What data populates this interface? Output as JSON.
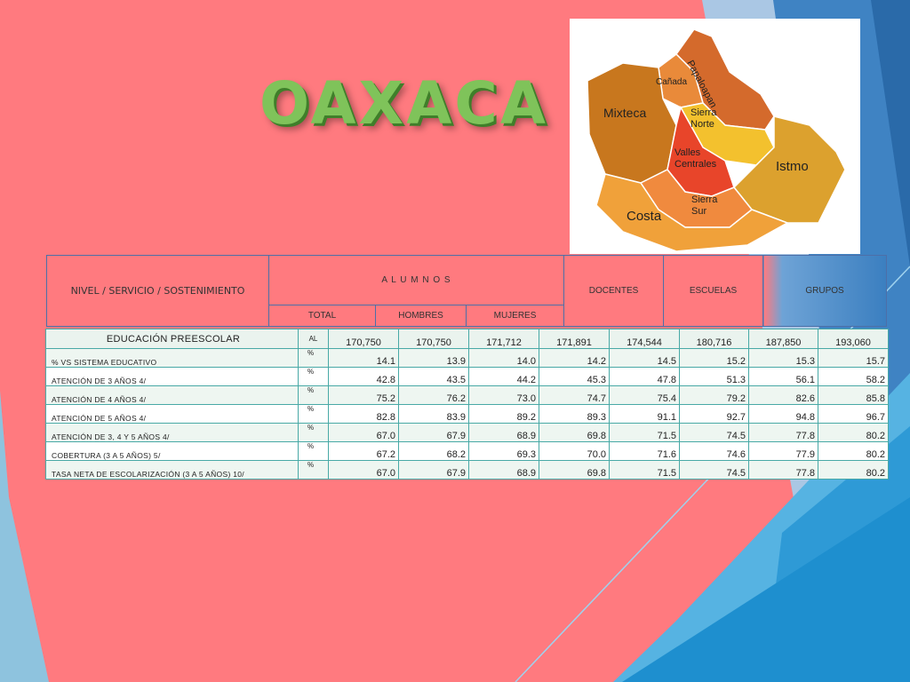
{
  "slide": {
    "title": "OAXACA",
    "colors": {
      "background": "#ff7a7f",
      "title": "#7fc35a",
      "accent_blue": "#3b7fc0"
    }
  },
  "map": {
    "regions": [
      "Papaloapan",
      "Cañada",
      "Mixteca",
      "Sierra Norte",
      "Valles Centrales",
      "Istmo",
      "Sierra Sur",
      "Costa"
    ]
  },
  "header": {
    "nivel": "NIVEL / SERVICIO / SOSTENIMIENTO",
    "alumnos": "A L U M N O S",
    "total": "TOTAL",
    "hombres": "HOMBRES",
    "mujeres": "MUJERES",
    "docentes": "DOCENTES",
    "escuelas": "ESCUELAS",
    "grupos": "GRUPOS"
  },
  "table": {
    "rows": [
      {
        "label": "EDUCACIÓN PREESCOLAR",
        "unit": "AL",
        "values": [
          "170,750",
          "170,750",
          "171,712",
          "171,891",
          "174,544",
          "180,716",
          "187,850",
          "193,060"
        ]
      },
      {
        "label": "% VS SISTEMA EDUCATIVO",
        "unit": "%",
        "values": [
          "14.1",
          "13.9",
          "14.0",
          "14.2",
          "14.5",
          "15.2",
          "15.3",
          "15.7"
        ]
      },
      {
        "label": "ATENCIÓN DE 3 AÑOS 4/",
        "unit": "%",
        "values": [
          "42.8",
          "43.5",
          "44.2",
          "45.3",
          "47.8",
          "51.3",
          "56.1",
          "58.2"
        ]
      },
      {
        "label": "ATENCIÓN DE 4 AÑOS 4/",
        "unit": "%",
        "values": [
          "75.2",
          "76.2",
          "73.0",
          "74.7",
          "75.4",
          "79.2",
          "82.6",
          "85.8"
        ]
      },
      {
        "label": "ATENCIÓN DE 5 AÑOS 4/",
        "unit": "%",
        "values": [
          "82.8",
          "83.9",
          "89.2",
          "89.3",
          "91.1",
          "92.7",
          "94.8",
          "96.7"
        ]
      },
      {
        "label": "ATENCIÓN DE 3, 4 Y 5 AÑOS 4/",
        "unit": "%",
        "values": [
          "67.0",
          "67.9",
          "68.9",
          "69.8",
          "71.5",
          "74.5",
          "77.8",
          "80.2"
        ]
      },
      {
        "label": "COBERTURA (3 A 5 AÑOS) 5/",
        "unit": "%",
        "values": [
          "67.2",
          "68.2",
          "69.3",
          "70.0",
          "71.6",
          "74.6",
          "77.9",
          "80.2"
        ]
      },
      {
        "label": "TASA NETA DE ESCOLARIZACIÓN (3 A 5 AÑOS) 10/",
        "unit": "%",
        "values": [
          "67.0",
          "67.9",
          "68.9",
          "69.8",
          "71.5",
          "74.5",
          "77.8",
          "80.2"
        ]
      }
    ]
  }
}
